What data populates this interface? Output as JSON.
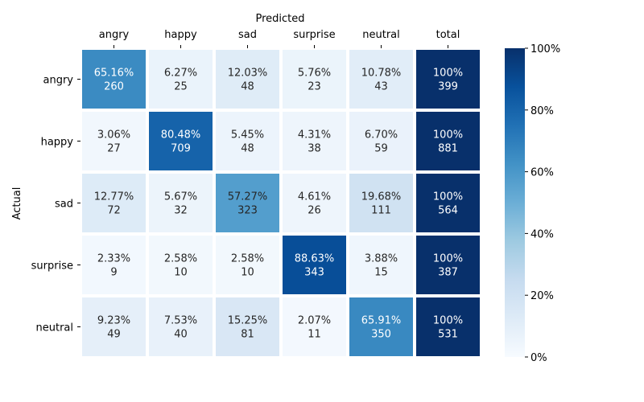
{
  "chart_data": {
    "type": "heatmap",
    "xlabel": "Predicted",
    "ylabel": "Actual",
    "columns": [
      "angry",
      "happy",
      "sad",
      "surprise",
      "neutral",
      "total"
    ],
    "rows": [
      "angry",
      "happy",
      "sad",
      "surprise",
      "neutral"
    ],
    "percent_labels": [
      [
        "65.16%",
        "6.27%",
        "12.03%",
        "5.76%",
        "10.78%",
        "100%"
      ],
      [
        "3.06%",
        "80.48%",
        "5.45%",
        "4.31%",
        "6.70%",
        "100%"
      ],
      [
        "12.77%",
        "5.67%",
        "57.27%",
        "4.61%",
        "19.68%",
        "100%"
      ],
      [
        "2.33%",
        "2.58%",
        "2.58%",
        "88.63%",
        "3.88%",
        "100%"
      ],
      [
        "9.23%",
        "7.53%",
        "15.25%",
        "2.07%",
        "65.91%",
        "100%"
      ]
    ],
    "percent_values": [
      [
        65.16,
        6.27,
        12.03,
        5.76,
        10.78,
        100
      ],
      [
        3.06,
        80.48,
        5.45,
        4.31,
        6.7,
        100
      ],
      [
        12.77,
        5.67,
        57.27,
        4.61,
        19.68,
        100
      ],
      [
        2.33,
        2.58,
        2.58,
        88.63,
        3.88,
        100
      ],
      [
        9.23,
        7.53,
        15.25,
        2.07,
        65.91,
        100
      ]
    ],
    "counts": [
      [
        260,
        25,
        48,
        23,
        43,
        399
      ],
      [
        27,
        709,
        48,
        38,
        59,
        881
      ],
      [
        72,
        32,
        323,
        26,
        111,
        564
      ],
      [
        9,
        10,
        10,
        343,
        15,
        387
      ],
      [
        49,
        40,
        81,
        11,
        350,
        531
      ]
    ],
    "colorbar": {
      "ticks": [
        "0%",
        "20%",
        "40%",
        "60%",
        "80%",
        "100%"
      ],
      "range": [
        0,
        100
      ],
      "colormap": "Blues"
    }
  }
}
